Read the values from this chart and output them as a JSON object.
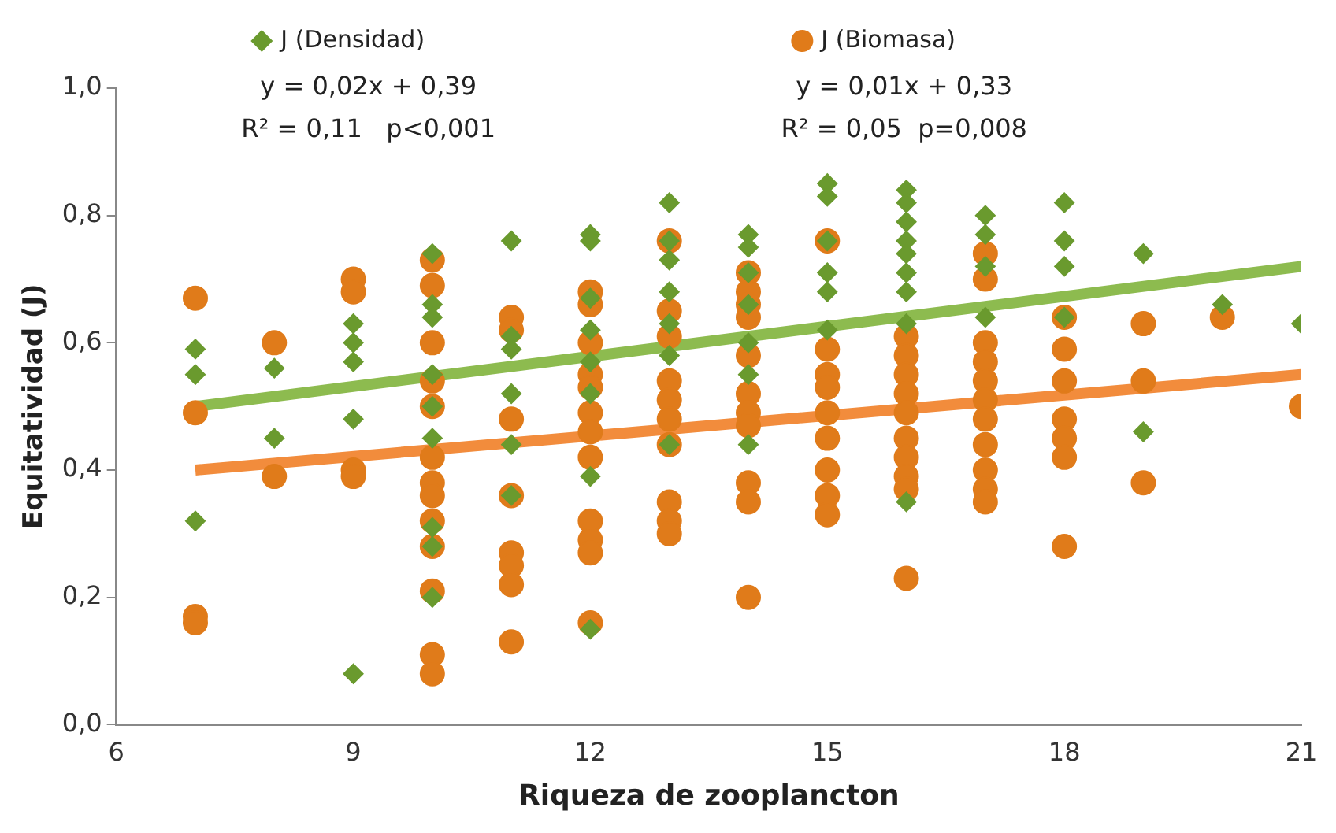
{
  "chart_data": {
    "type": "scatter",
    "xlabel": "Riqueza de zooplancton",
    "ylabel": "Equitatividad (J)",
    "xlim": [
      6,
      21
    ],
    "xticks": [
      6,
      9,
      12,
      15,
      18,
      21
    ],
    "ylim": [
      0,
      1
    ],
    "yticks": [
      {
        "value": 0,
        "label": "0,0"
      },
      {
        "value": 0.2,
        "label": "0,2"
      },
      {
        "value": 0.4,
        "label": "0,4"
      },
      {
        "value": 0.6,
        "label": "0,6"
      },
      {
        "value": 0.8,
        "label": "0,8"
      },
      {
        "value": 1,
        "label": "1,0"
      }
    ],
    "grid": false,
    "legend": "top",
    "annotations": [
      "y = 0,02x + 0,39",
      "R² = 0,11   p<0,001",
      "y = 0,01x + 0,33",
      "R² = 0,05  p=0,008"
    ],
    "series": [
      {
        "name": "J (Densidad)",
        "color": "#6a9a2e",
        "marker": "diamond",
        "x": [
          7,
          7,
          7,
          8,
          8,
          9,
          9,
          9,
          9,
          9,
          10,
          10,
          10,
          10,
          10,
          10,
          10,
          10,
          10,
          11,
          11,
          11,
          11,
          11,
          11,
          12,
          12,
          12,
          12,
          12,
          12,
          12,
          12,
          13,
          13,
          13,
          13,
          13,
          13,
          13,
          14,
          14,
          14,
          14,
          14,
          14,
          14,
          15,
          15,
          15,
          15,
          15,
          15,
          16,
          16,
          16,
          16,
          16,
          16,
          16,
          16,
          16,
          17,
          17,
          17,
          17,
          18,
          18,
          18,
          18,
          19,
          19,
          20,
          21
        ],
        "values": [
          0.59,
          0.55,
          0.32,
          0.56,
          0.45,
          0.63,
          0.6,
          0.57,
          0.48,
          0.08,
          0.74,
          0.66,
          0.64,
          0.55,
          0.5,
          0.45,
          0.31,
          0.28,
          0.2,
          0.76,
          0.61,
          0.59,
          0.52,
          0.44,
          0.36,
          0.77,
          0.76,
          0.67,
          0.62,
          0.57,
          0.52,
          0.39,
          0.15,
          0.82,
          0.76,
          0.73,
          0.68,
          0.63,
          0.58,
          0.44,
          0.77,
          0.75,
          0.71,
          0.66,
          0.6,
          0.55,
          0.44,
          0.85,
          0.83,
          0.76,
          0.71,
          0.68,
          0.62,
          0.84,
          0.82,
          0.79,
          0.76,
          0.74,
          0.71,
          0.68,
          0.63,
          0.35,
          0.8,
          0.77,
          0.72,
          0.64,
          0.82,
          0.76,
          0.72,
          0.64,
          0.74,
          0.46,
          0.66,
          0.63
        ]
      },
      {
        "name": "J (Biomasa)",
        "color": "#e07b1a",
        "marker": "circle",
        "x": [
          7,
          7,
          7,
          7,
          8,
          8,
          9,
          9,
          9,
          9,
          10,
          10,
          10,
          10,
          10,
          10,
          10,
          10,
          10,
          10,
          10,
          10,
          10,
          11,
          11,
          11,
          11,
          11,
          11,
          11,
          11,
          12,
          12,
          12,
          12,
          12,
          12,
          12,
          12,
          12,
          12,
          12,
          12,
          13,
          13,
          13,
          13,
          13,
          13,
          13,
          13,
          13,
          13,
          14,
          14,
          14,
          14,
          14,
          14,
          14,
          14,
          14,
          14,
          14,
          15,
          15,
          15,
          15,
          15,
          15,
          15,
          15,
          15,
          16,
          16,
          16,
          16,
          16,
          16,
          16,
          16,
          16,
          16,
          17,
          17,
          17,
          17,
          17,
          17,
          17,
          17,
          17,
          17,
          17,
          18,
          18,
          18,
          18,
          18,
          18,
          18,
          19,
          19,
          19,
          20,
          21
        ],
        "values": [
          0.67,
          0.49,
          0.17,
          0.16,
          0.6,
          0.39,
          0.7,
          0.68,
          0.4,
          0.39,
          0.73,
          0.69,
          0.6,
          0.54,
          0.5,
          0.42,
          0.38,
          0.36,
          0.32,
          0.28,
          0.21,
          0.11,
          0.08,
          0.64,
          0.62,
          0.48,
          0.36,
          0.27,
          0.25,
          0.22,
          0.13,
          0.68,
          0.66,
          0.6,
          0.55,
          0.53,
          0.49,
          0.46,
          0.42,
          0.32,
          0.29,
          0.27,
          0.16,
          0.76,
          0.65,
          0.61,
          0.54,
          0.51,
          0.48,
          0.44,
          0.35,
          0.32,
          0.3,
          0.71,
          0.68,
          0.66,
          0.64,
          0.58,
          0.52,
          0.49,
          0.47,
          0.38,
          0.35,
          0.2,
          0.76,
          0.59,
          0.55,
          0.53,
          0.49,
          0.45,
          0.4,
          0.36,
          0.33,
          0.61,
          0.58,
          0.55,
          0.52,
          0.49,
          0.45,
          0.42,
          0.39,
          0.37,
          0.23,
          0.74,
          0.7,
          0.6,
          0.57,
          0.54,
          0.51,
          0.48,
          0.44,
          0.4,
          0.37,
          0.35,
          0.64,
          0.59,
          0.54,
          0.48,
          0.45,
          0.42,
          0.28,
          0.63,
          0.54,
          0.38,
          0.64,
          0.5
        ]
      },
      {
        "type": "line",
        "color": "#8dbb4f",
        "marker": "none",
        "x": [
          7,
          21
        ],
        "values": [
          0.5,
          0.72
        ]
      },
      {
        "type": "line",
        "color": "#f28c3c",
        "marker": "none",
        "x": [
          7,
          21
        ],
        "values": [
          0.4,
          0.55
        ]
      }
    ]
  }
}
